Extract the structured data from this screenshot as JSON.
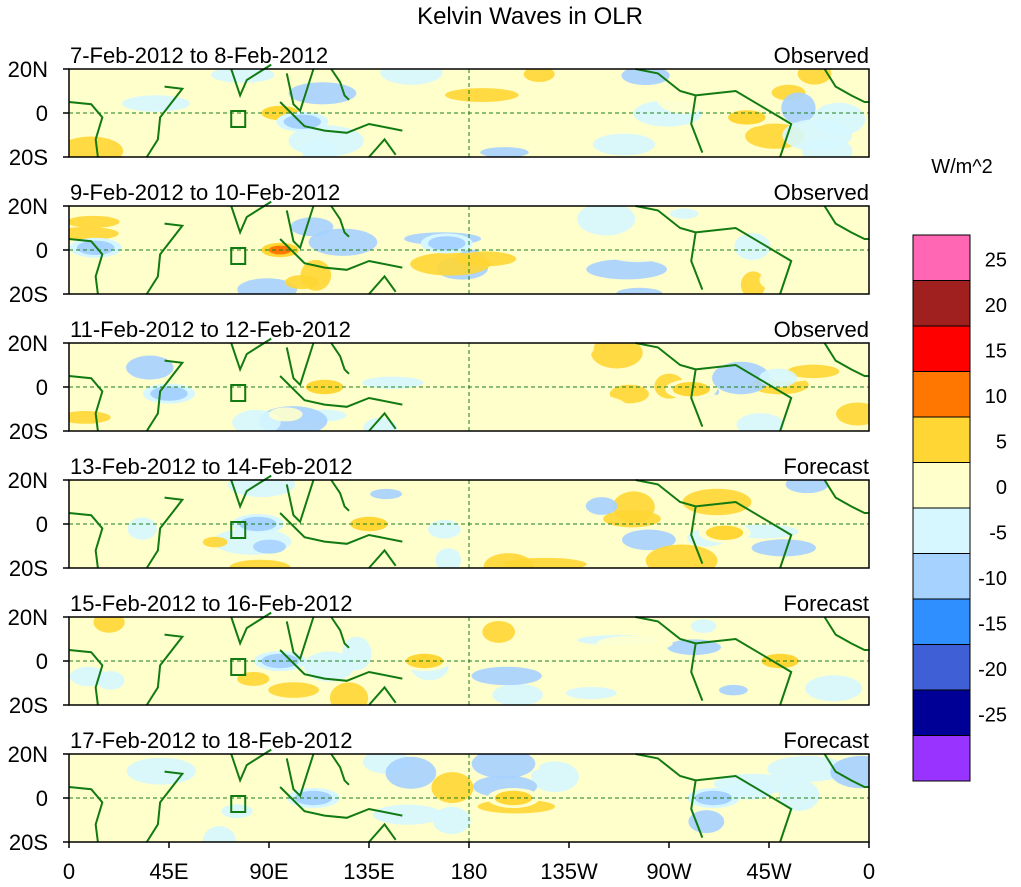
{
  "title": "Kelvin Waves in OLR",
  "chart_data": {
    "type": "heatmap",
    "title": "Kelvin Waves in OLR",
    "units": "W/m^2",
    "x_ticks": [
      "0",
      "45E",
      "90E",
      "135E",
      "180",
      "135W",
      "90W",
      "45W",
      "0"
    ],
    "y_ticks": [
      "20N",
      "0",
      "20S"
    ],
    "colorbar": {
      "labels": [
        "25",
        "20",
        "15",
        "10",
        "5",
        "0",
        "-5",
        "-10",
        "-15",
        "-20",
        "-25"
      ],
      "colors": [
        "#ff66b3",
        "#a02020",
        "#ff0000",
        "#ff7700",
        "#ffd633",
        "#ffffcc",
        "#d6f7ff",
        "#a6d2ff",
        "#2f8fff",
        "#3f5fd6",
        "#000096",
        "#9933ff"
      ]
    },
    "panels": [
      {
        "period": "7-Feb-2012 to 8-Feb-2012",
        "status": "Observed"
      },
      {
        "period": "9-Feb-2012 to 10-Feb-2012",
        "status": "Observed"
      },
      {
        "period": "11-Feb-2012 to 12-Feb-2012",
        "status": "Observed"
      },
      {
        "period": "13-Feb-2012 to 14-Feb-2012",
        "status": "Forecast"
      },
      {
        "period": "15-Feb-2012 to 16-Feb-2012",
        "status": "Forecast"
      },
      {
        "period": "17-Feb-2012 to 18-Feb-2012",
        "status": "Forecast"
      }
    ]
  }
}
